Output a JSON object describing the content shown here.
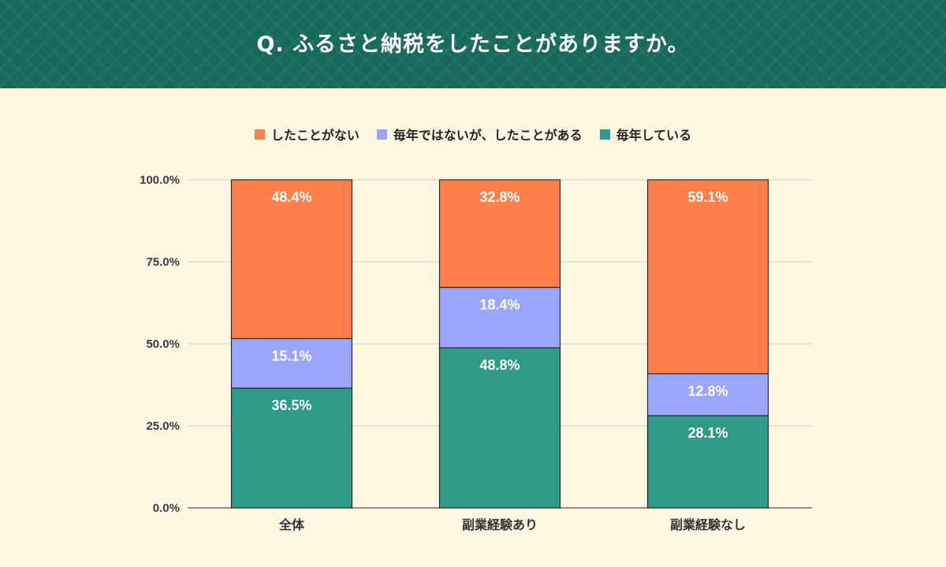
{
  "title": "Q. ふるさと納税をしたことがありますか。",
  "colors": {
    "header_bg": "#17695c",
    "background": "#fdf8e1",
    "no": "#ff7f4a",
    "sometimes": "#9aa6fb",
    "yearly": "#2e9a88"
  },
  "legend": [
    {
      "label": "したことがない",
      "color": "#ff7f4a"
    },
    {
      "label": "毎年ではないが、したことがある",
      "color": "#9aa6fb"
    },
    {
      "label": "毎年している",
      "color": "#2e9a88"
    }
  ],
  "chart_data": {
    "type": "bar",
    "stacked": true,
    "categories": [
      "全体",
      "副業経験あり",
      "副業経験なし"
    ],
    "series": [
      {
        "name": "毎年している",
        "color": "#2e9a88",
        "values": [
          36.5,
          48.8,
          28.1
        ],
        "labels": [
          "36.5%",
          "48.8%",
          "28.1%"
        ]
      },
      {
        "name": "毎年ではないが、したことがある",
        "color": "#9aa6fb",
        "values": [
          15.1,
          18.4,
          12.8
        ],
        "labels": [
          "15.1%",
          "18.4%",
          "12.8%"
        ]
      },
      {
        "name": "したことがない",
        "color": "#ff7f4a",
        "values": [
          48.4,
          32.8,
          59.1
        ],
        "labels": [
          "48.4%",
          "32.8%",
          "59.1%"
        ]
      }
    ],
    "y_ticks": [
      0,
      25,
      50,
      75,
      100
    ],
    "y_tick_labels": [
      "0.0%",
      "25.0%",
      "50.0%",
      "75.0%",
      "100.0%"
    ],
    "ylim": [
      0,
      100
    ],
    "grid": true,
    "legend_position": "top"
  }
}
